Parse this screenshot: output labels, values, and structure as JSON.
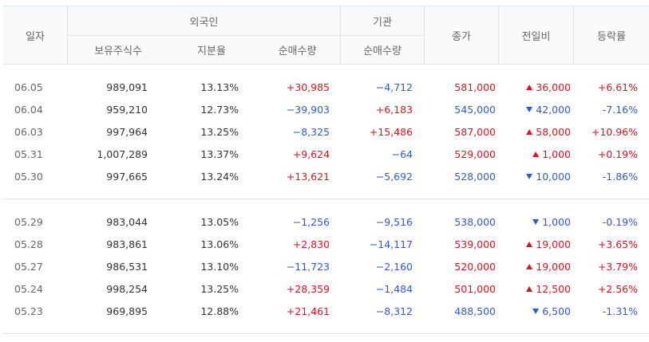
{
  "header": {
    "date": "일자",
    "foreign": "외국인",
    "institution": "기관",
    "close": "종가",
    "change": "전일비",
    "rate": "등락률",
    "holdings": "보유주식수",
    "share": "지분율",
    "foreign_net": "순매수량",
    "inst_net": "순매수량"
  },
  "rows": [
    {
      "date": "06.05",
      "holdings": "989,091",
      "share": "13.13%",
      "foreign_net": "+30,985",
      "foreign_dir": "up",
      "inst_net": "−4,712",
      "inst_dir": "down",
      "close": "581,000",
      "close_dir": "up",
      "change": "36,000",
      "change_dir": "up",
      "rate": "+6.61%",
      "rate_dir": "up"
    },
    {
      "date": "06.04",
      "holdings": "959,210",
      "share": "12.73%",
      "foreign_net": "−39,903",
      "foreign_dir": "down",
      "inst_net": "+6,183",
      "inst_dir": "up",
      "close": "545,000",
      "close_dir": "down",
      "change": "42,000",
      "change_dir": "down",
      "rate": "-7.16%",
      "rate_dir": "down"
    },
    {
      "date": "06.03",
      "holdings": "997,964",
      "share": "13.25%",
      "foreign_net": "−8,325",
      "foreign_dir": "down",
      "inst_net": "+15,486",
      "inst_dir": "up",
      "close": "587,000",
      "close_dir": "up",
      "change": "58,000",
      "change_dir": "up",
      "rate": "+10.96%",
      "rate_dir": "up"
    },
    {
      "date": "05.31",
      "holdings": "1,007,289",
      "share": "13.37%",
      "foreign_net": "+9,624",
      "foreign_dir": "up",
      "inst_net": "−64",
      "inst_dir": "down",
      "close": "529,000",
      "close_dir": "up",
      "change": "1,000",
      "change_dir": "up",
      "rate": "+0.19%",
      "rate_dir": "up"
    },
    {
      "date": "05.30",
      "holdings": "997,665",
      "share": "13.24%",
      "foreign_net": "+13,621",
      "foreign_dir": "up",
      "inst_net": "−5,692",
      "inst_dir": "down",
      "close": "528,000",
      "close_dir": "down",
      "change": "10,000",
      "change_dir": "down",
      "rate": "-1.86%",
      "rate_dir": "down"
    },
    {
      "date": "05.29",
      "holdings": "983,044",
      "share": "13.05%",
      "foreign_net": "−1,256",
      "foreign_dir": "down",
      "inst_net": "−9,516",
      "inst_dir": "down",
      "close": "538,000",
      "close_dir": "down",
      "change": "1,000",
      "change_dir": "down",
      "rate": "-0.19%",
      "rate_dir": "down"
    },
    {
      "date": "05.28",
      "holdings": "983,861",
      "share": "13.06%",
      "foreign_net": "+2,830",
      "foreign_dir": "up",
      "inst_net": "−14,117",
      "inst_dir": "down",
      "close": "539,000",
      "close_dir": "up",
      "change": "19,000",
      "change_dir": "up",
      "rate": "+3.65%",
      "rate_dir": "up"
    },
    {
      "date": "05.27",
      "holdings": "986,531",
      "share": "13.10%",
      "foreign_net": "−11,723",
      "foreign_dir": "down",
      "inst_net": "−2,160",
      "inst_dir": "down",
      "close": "520,000",
      "close_dir": "up",
      "change": "19,000",
      "change_dir": "up",
      "rate": "+3.79%",
      "rate_dir": "up"
    },
    {
      "date": "05.24",
      "holdings": "998,254",
      "share": "13.25%",
      "foreign_net": "+28,359",
      "foreign_dir": "up",
      "inst_net": "−1,484",
      "inst_dir": "down",
      "close": "501,000",
      "close_dir": "up",
      "change": "12,500",
      "change_dir": "up",
      "rate": "+2.56%",
      "rate_dir": "up"
    },
    {
      "date": "05.23",
      "holdings": "969,895",
      "share": "12.88%",
      "foreign_net": "+21,461",
      "foreign_dir": "up",
      "inst_net": "−8,312",
      "inst_dir": "down",
      "close": "488,500",
      "close_dir": "down",
      "change": "6,500",
      "change_dir": "down",
      "rate": "-1.31%",
      "rate_dir": "down"
    }
  ],
  "colors": {
    "up": "#e4121e",
    "down": "#2f5bd2",
    "grid": "#e3e3e3",
    "header_bg": "#f9fafc"
  }
}
